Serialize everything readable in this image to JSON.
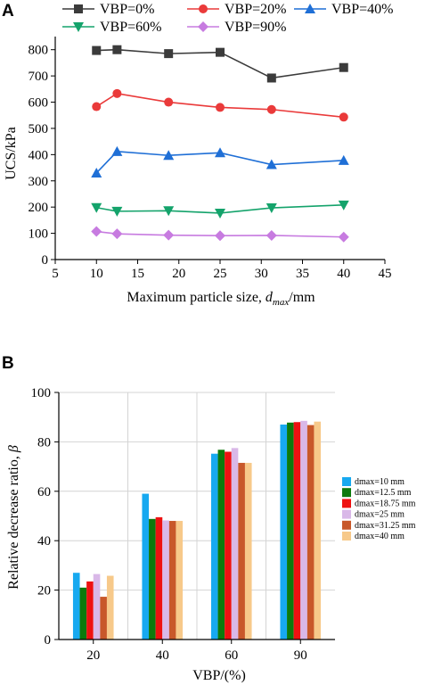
{
  "panels": [
    {
      "letter": "A",
      "chart_data": {
        "type": "line",
        "xlabel": "Maximum particle size, d_max/mm",
        "ylabel": "UCS/kPa",
        "xlim": [
          5,
          45
        ],
        "ylim": [
          0,
          850
        ],
        "xticks": [
          5,
          10,
          15,
          20,
          25,
          30,
          35,
          40,
          45
        ],
        "yticks": [
          0,
          100,
          200,
          300,
          400,
          500,
          600,
          700,
          800
        ],
        "x": [
          10,
          12.5,
          18.75,
          25,
          31.25,
          40
        ],
        "grid": false,
        "legend_position": "top",
        "series": [
          {
            "name": "VBP=0%",
            "color": "#3b3b3b",
            "marker": "square",
            "values": [
              797,
              800,
              785,
              790,
              692,
              732
            ]
          },
          {
            "name": "VBP=20%",
            "color": "#ea3a3a",
            "marker": "circle",
            "values": [
              583,
              633,
              600,
              580,
              572,
              543
            ]
          },
          {
            "name": "VBP=40%",
            "color": "#1f6fd6",
            "marker": "triangle-up",
            "values": [
              330,
              412,
              397,
              407,
              362,
              378
            ]
          },
          {
            "name": "VBP=60%",
            "color": "#14a36b",
            "marker": "triangle-down",
            "values": [
              198,
              184,
              186,
              177,
              197,
              208
            ]
          },
          {
            "name": "VBP=90%",
            "color": "#c77be0",
            "marker": "diamond",
            "values": [
              107,
              98,
              93,
              91,
              92,
              86
            ]
          }
        ]
      }
    },
    {
      "letter": "B",
      "chart_data": {
        "type": "bar",
        "xlabel": "VBP/(%)",
        "ylabel": "Relative decrease ratio, β",
        "ylim": [
          0,
          100
        ],
        "yticks": [
          0,
          20,
          40,
          60,
          80,
          100
        ],
        "categories": [
          "20",
          "40",
          "60",
          "90"
        ],
        "grid": true,
        "legend_position": "right",
        "series": [
          {
            "name": "dmax=10 mm",
            "color": "#17a9f0",
            "values": [
              27.0,
              59.0,
              75.2,
              87.0
            ]
          },
          {
            "name": "dmax=12.5 mm",
            "color": "#0d7a0d",
            "values": [
              21.0,
              48.8,
              76.8,
              87.8
            ]
          },
          {
            "name": "dmax=18.75 mm",
            "color": "#ee1111",
            "values": [
              23.5,
              49.5,
              76.0,
              88.0
            ]
          },
          {
            "name": "dmax=25 mm",
            "color": "#d9b8e8",
            "values": [
              26.5,
              48.2,
              77.5,
              88.5
            ]
          },
          {
            "name": "dmax=31.25 mm",
            "color": "#c8582a",
            "values": [
              17.3,
              48.0,
              71.5,
              86.8
            ]
          },
          {
            "name": "dmax=40 mm",
            "color": "#f7c98a",
            "values": [
              25.8,
              48.0,
              71.5,
              88.2
            ]
          }
        ]
      }
    }
  ],
  "labels": {
    "a_xlabel_prefix": "Maximum particle size, ",
    "a_xlabel_var": "d",
    "a_xlabel_sub": "max",
    "a_xlabel_suffix": "/mm",
    "b_ylabel_text": "Relative decrease ratio, ",
    "b_ylabel_var": "β"
  }
}
